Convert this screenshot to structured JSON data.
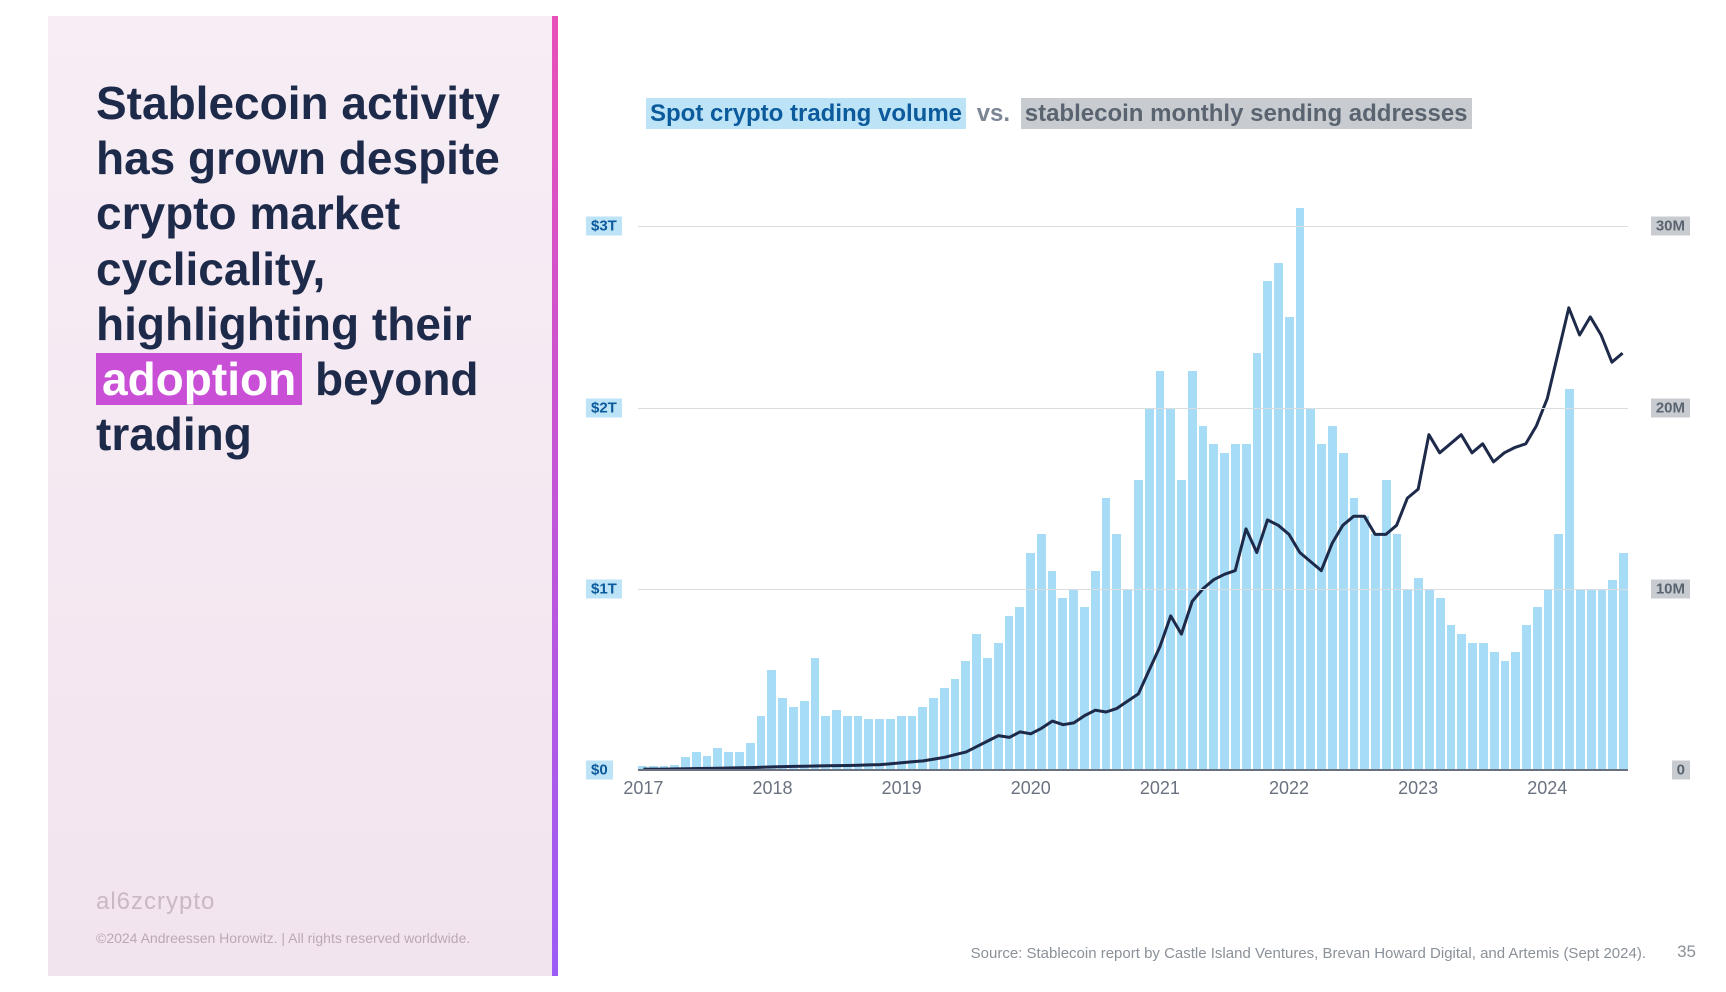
{
  "headline": {
    "pre": "Stablecoin activity has grown despite crypto market cyclicality, highlighting their ",
    "highlight": "adoption",
    "post": " beyond trading",
    "color": "#1e2a4a",
    "highlight_bg": "#c94fd6",
    "fontsize": 46
  },
  "logo": "al6zcrypto",
  "copyright": "©2024 Andreessen Horowitz.  |  All rights reserved worldwide.",
  "chart_title": {
    "series_a": "Spot crypto trading volume",
    "vs": " vs. ",
    "series_b": "stablecoin monthly sending addresses",
    "a_bg": "#bde3f7",
    "a_color": "#0b5a9c",
    "b_bg": "#c8ccd0",
    "b_color": "#5a6470"
  },
  "chart": {
    "type": "bar+line",
    "bar_color": "#a6dcf5",
    "line_color": "#1e2a4a",
    "line_width": 3,
    "grid_color": "#d8dde2",
    "baseline_color": "#6a7280",
    "background": "#ffffff",
    "left_axis": {
      "min": 0,
      "max": 3.2,
      "ticks": [
        0,
        1,
        2,
        3
      ],
      "labels": [
        "$0",
        "$1T",
        "$2T",
        "$3T"
      ],
      "unit": "T USD"
    },
    "right_axis": {
      "min": 0,
      "max": 32,
      "ticks": [
        0,
        10,
        20,
        30
      ],
      "labels": [
        "0",
        "10M",
        "20M",
        "30M"
      ],
      "unit": "M addresses"
    },
    "x_axis": {
      "start_year": 2017,
      "months": 92,
      "tick_years": [
        2017,
        2018,
        2019,
        2020,
        2021,
        2022,
        2023,
        2024
      ]
    },
    "bars_values_T": [
      0.02,
      0.02,
      0.02,
      0.03,
      0.07,
      0.1,
      0.08,
      0.12,
      0.1,
      0.1,
      0.15,
      0.3,
      0.55,
      0.4,
      0.35,
      0.38,
      0.62,
      0.3,
      0.33,
      0.3,
      0.3,
      0.28,
      0.28,
      0.28,
      0.3,
      0.3,
      0.35,
      0.4,
      0.45,
      0.5,
      0.6,
      0.75,
      0.62,
      0.7,
      0.85,
      0.9,
      1.2,
      1.3,
      1.1,
      0.95,
      1.0,
      0.9,
      1.1,
      1.5,
      1.3,
      1.0,
      1.6,
      2.0,
      2.2,
      2.0,
      1.6,
      2.2,
      1.9,
      1.8,
      1.75,
      1.8,
      1.8,
      2.3,
      2.7,
      2.8,
      2.5,
      3.1,
      2.0,
      1.8,
      1.9,
      1.75,
      1.5,
      1.4,
      1.3,
      1.6,
      1.3,
      1.0,
      1.06,
      1.0,
      0.95,
      0.8,
      0.75,
      0.7,
      0.7,
      0.65,
      0.6,
      0.65,
      0.8,
      0.9,
      1.0,
      1.3,
      2.1,
      1.0,
      1.0,
      1.0,
      1.05,
      1.2
    ],
    "line_values_M": [
      0.05,
      0.05,
      0.05,
      0.06,
      0.07,
      0.08,
      0.09,
      0.1,
      0.11,
      0.12,
      0.13,
      0.15,
      0.17,
      0.19,
      0.2,
      0.21,
      0.22,
      0.23,
      0.24,
      0.25,
      0.26,
      0.28,
      0.3,
      0.34,
      0.4,
      0.45,
      0.5,
      0.6,
      0.7,
      0.85,
      1.0,
      1.3,
      1.6,
      1.9,
      1.8,
      2.1,
      2.0,
      2.3,
      2.7,
      2.5,
      2.6,
      3.0,
      3.3,
      3.2,
      3.4,
      3.8,
      4.2,
      5.5,
      6.8,
      8.5,
      7.5,
      9.3,
      10.0,
      10.5,
      10.8,
      11.0,
      13.3,
      12.0,
      13.8,
      13.5,
      13.0,
      12.0,
      11.5,
      11.0,
      12.5,
      13.5,
      14.0,
      14.0,
      13.0,
      13.0,
      13.5,
      15.0,
      15.5,
      18.5,
      17.5,
      18.0,
      18.5,
      17.5,
      18.0,
      17.0,
      17.5,
      17.8,
      18.0,
      19.0,
      20.5,
      23.0,
      25.5,
      24.0,
      25.0,
      24.0,
      22.5,
      23.0
    ]
  },
  "source": "Source: Stablecoin report by Castle Island Ventures, Brevan Howard Digital, and Artemis (Sept 2024).",
  "page_number": "35"
}
